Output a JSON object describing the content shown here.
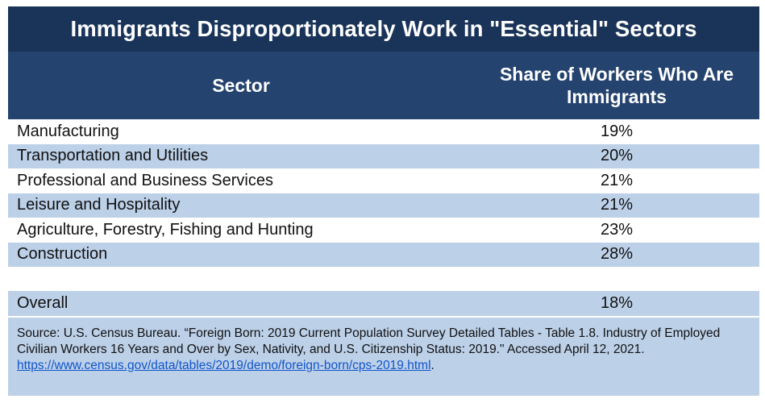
{
  "title": "Immigrants Disproportionately Work in \"Essential\" Sectors",
  "colors": {
    "title_bg": "#1a3459",
    "header_bg": "#24436f",
    "stripe": "#bcd0e8",
    "link": "#1155cc"
  },
  "chart_data": {
    "type": "table",
    "title": "Immigrants Disproportionately Work in \"Essential\" Sectors",
    "columns": [
      "Sector",
      "Share of Workers Who Are Immigrants"
    ],
    "rows": [
      {
        "sector": "Manufacturing",
        "share": "19%",
        "value": 19
      },
      {
        "sector": "Transportation and Utilities",
        "share": "20%",
        "value": 20
      },
      {
        "sector": "Professional and Business Services",
        "share": "21%",
        "value": 21
      },
      {
        "sector": "Leisure and Hospitality",
        "share": "21%",
        "value": 21
      },
      {
        "sector": "Agriculture, Forestry, Fishing and Hunting",
        "share": "23%",
        "value": 23
      },
      {
        "sector": "Construction",
        "share": "28%",
        "value": 28
      }
    ],
    "overall": {
      "label": "Overall",
      "share": "18%",
      "value": 18
    }
  },
  "source": {
    "text": "Source: U.S. Census Bureau. “Foreign Born: 2019 Current Population Survey Detailed Tables - Table 1.8. Industry of Employed Civilian Workers 16 Years and Over by Sex, Nativity, and U.S. Citizenship Status: 2019.\" Accessed April 12, 2021. ",
    "link": "https://www.census.gov/data/tables/2019/demo/foreign-born/cps-2019.html",
    "end": "."
  }
}
